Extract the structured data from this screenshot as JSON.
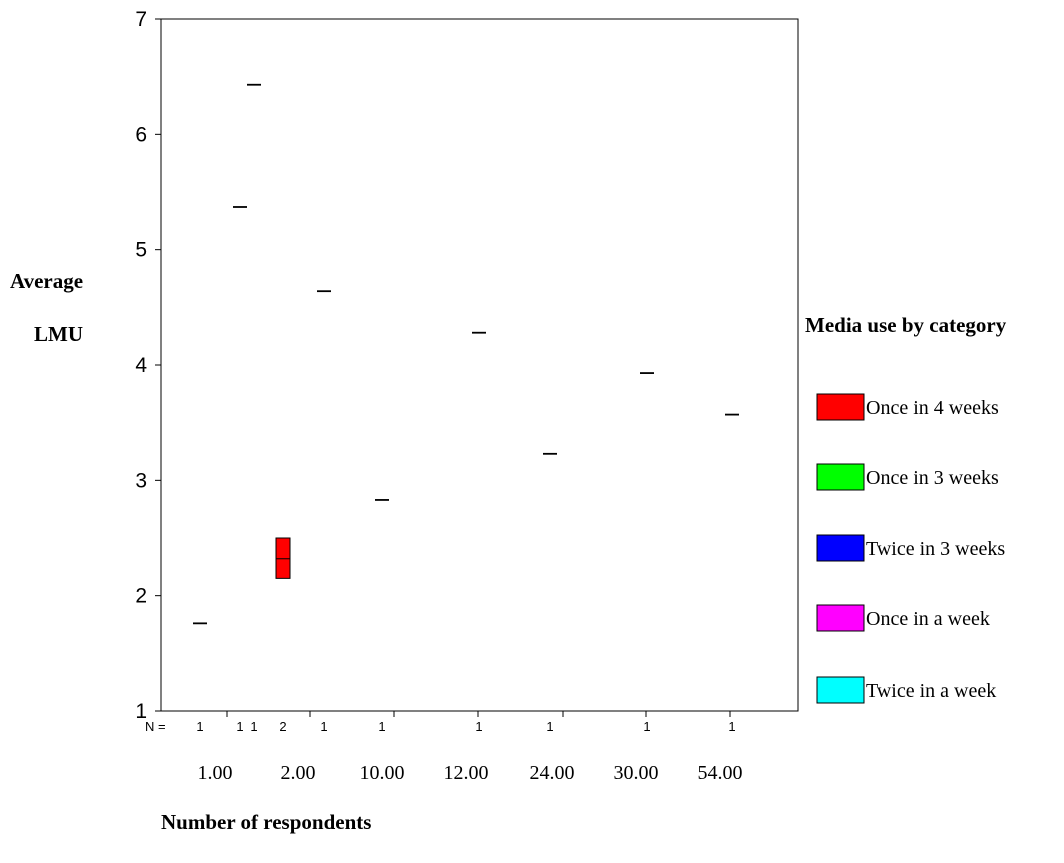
{
  "chart_data": {
    "type": "box",
    "ylabel": [
      "Average",
      "LMU"
    ],
    "xlabel": "Number of respondents",
    "ylim": [
      1,
      7
    ],
    "yticks": [
      1,
      2,
      3,
      4,
      5,
      6,
      7
    ],
    "n_prefix": "N =",
    "x_tick_labels": [
      "1.00",
      "2.00",
      "10.00",
      "12.00",
      "24.00",
      "30.00",
      "54.00"
    ],
    "legend": {
      "title": "Media use by category",
      "items": [
        {
          "label": "Once in 4 weeks",
          "color": "#ff0000"
        },
        {
          "label": "Once in 3 weeks",
          "color": "#00ff00"
        },
        {
          "label": "Twice in 3 weeks",
          "color": "#0000ff"
        },
        {
          "label": "Once in a week",
          "color": "#ff00ff"
        },
        {
          "label": "Twice in a week",
          "color": "#00ffff"
        }
      ]
    },
    "groups": [
      {
        "n": "1",
        "value": 1.76
      },
      {
        "n": "1",
        "value": 5.37
      },
      {
        "n": "1",
        "value": 6.43
      },
      {
        "n": "2",
        "box": [
          2.15,
          2.5
        ],
        "median": 2.32,
        "color": "#ff0000"
      },
      {
        "n": "1",
        "value": 4.64
      },
      {
        "n": "1",
        "value": 2.83
      },
      {
        "n": "1",
        "value": 4.28
      },
      {
        "n": "1",
        "value": 3.23
      },
      {
        "n": "1",
        "value": 3.93
      },
      {
        "n": "1",
        "value": 3.57
      }
    ]
  }
}
